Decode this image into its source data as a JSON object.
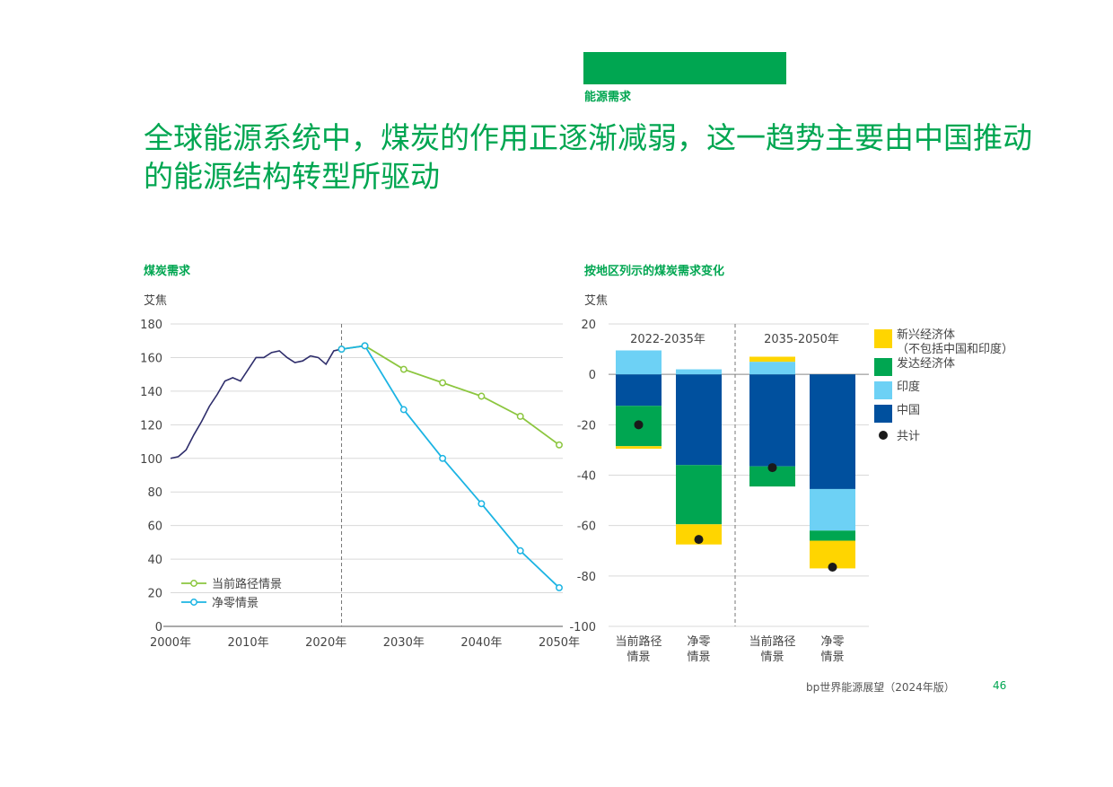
{
  "header": {
    "section": "能源需求",
    "title": "全球能源系统中，煤炭的作用正逐渐减弱，这一趋势主要由中国推动的能源结构转型所驱动"
  },
  "colors": {
    "brand_green": "#00a651",
    "current_path": "#8cc63f",
    "net_zero": "#1cb4e3",
    "history": "#2e2d6b",
    "emerging": "#ffd500",
    "developed": "#00a651",
    "india": "#6dd1f5",
    "china": "#00509e",
    "total": "#1a1a1a"
  },
  "chart_data": [
    {
      "type": "line",
      "title": "煤炭需求",
      "ylabel": "艾焦",
      "ylim": [
        0,
        180
      ],
      "yticks": [
        0,
        20,
        40,
        60,
        80,
        100,
        120,
        140,
        160,
        180
      ],
      "xlim": [
        2000,
        2050
      ],
      "xticks": [
        2000,
        2010,
        2020,
        2030,
        2040,
        2050
      ],
      "xtick_labels": [
        "2000年",
        "2010年",
        "2020年",
        "2030年",
        "2040年",
        "2050年"
      ],
      "divider_year": 2022,
      "history": {
        "x": [
          2000,
          2001,
          2002,
          2003,
          2004,
          2005,
          2006,
          2007,
          2008,
          2009,
          2010,
          2011,
          2012,
          2013,
          2014,
          2015,
          2016,
          2017,
          2018,
          2019,
          2020,
          2021,
          2022
        ],
        "y": [
          100,
          101,
          105,
          114,
          122,
          131,
          138,
          146,
          148,
          146,
          153,
          160,
          160,
          163,
          164,
          160,
          157,
          158,
          161,
          160,
          156,
          164,
          165
        ]
      },
      "series": [
        {
          "name": "当前路径情景",
          "x": [
            2022,
            2025,
            2030,
            2035,
            2040,
            2045,
            2050
          ],
          "y": [
            165,
            167,
            153,
            145,
            137,
            125,
            108
          ]
        },
        {
          "name": "净零情景",
          "x": [
            2022,
            2025,
            2030,
            2035,
            2040,
            2045,
            2050
          ],
          "y": [
            165,
            167,
            129,
            100,
            73,
            45,
            23
          ]
        }
      ],
      "legend_position": "bottom-left"
    },
    {
      "type": "bar",
      "stacked": true,
      "title": "按地区列示的煤炭需求变化",
      "ylabel": "艾焦",
      "ylim": [
        -100,
        20
      ],
      "yticks": [
        20,
        0,
        -20,
        -40,
        -60,
        -80,
        -100
      ],
      "periods": [
        "2022-2035年",
        "2035-2050年"
      ],
      "categories": [
        {
          "label_line1": "当前路径",
          "label_line2": "情景",
          "period": 0
        },
        {
          "label_line1": "净零",
          "label_line2": "情景",
          "period": 0
        },
        {
          "label_line1": "当前路径",
          "label_line2": "情景",
          "period": 1
        },
        {
          "label_line1": "净零",
          "label_line2": "情景",
          "period": 1
        }
      ],
      "series": [
        {
          "name": "中国",
          "values": [
            -12.5,
            -36,
            -36.5,
            -45.5
          ]
        },
        {
          "name": "印度",
          "values": [
            9.5,
            2,
            5,
            -16.5
          ]
        },
        {
          "name": "发达经济体",
          "values": [
            -16,
            -23.5,
            -8,
            -4
          ]
        },
        {
          "name": "新兴经济体（不包括中国和印度）",
          "values": [
            -1,
            -8,
            2,
            -11
          ]
        }
      ],
      "totals": {
        "name": "共计",
        "values": [
          -20,
          -65.5,
          -37,
          -76.5
        ]
      },
      "legend": [
        {
          "line1": "新兴经济体",
          "line2": "（不包括中国和印度）",
          "key": "emerging"
        },
        {
          "line1": "发达经济体",
          "key": "developed"
        },
        {
          "line1": "印度",
          "key": "india"
        },
        {
          "line1": "中国",
          "key": "china"
        },
        {
          "line1": "共计",
          "key": "total"
        }
      ],
      "legend_position": "right"
    }
  ],
  "footer": {
    "source": "bp世界能源展望（2024年版）",
    "page": "46"
  }
}
